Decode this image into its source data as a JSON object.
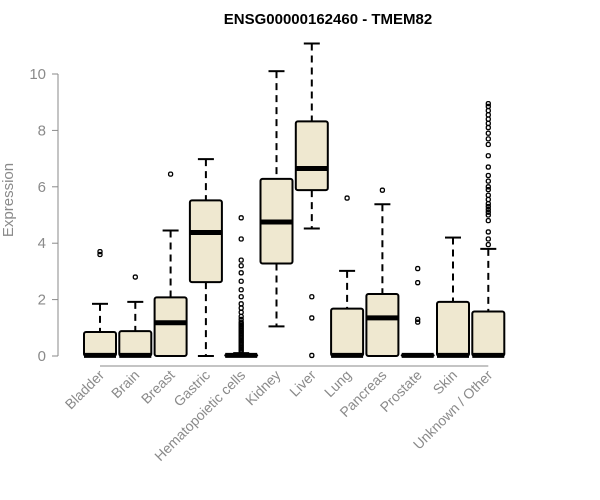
{
  "chart_data": {
    "type": "boxplot",
    "title": "ENSG00000162460 - TMEM82",
    "xlabel": "",
    "ylabel": "Expression",
    "ylim": [
      0,
      11
    ],
    "yticks": [
      0,
      2,
      4,
      6,
      8,
      10
    ],
    "box_fill": "#efe8d0",
    "categories": [
      "Bladder",
      "Brain",
      "Breast",
      "Gastric",
      "Hematopoietic cells",
      "Kidney",
      "Liver",
      "Lung",
      "Pancreas",
      "Prostate",
      "Skin",
      "Unknown / Other"
    ],
    "boxes": [
      {
        "category": "Bladder",
        "min": 0,
        "q1": 0,
        "median": 0.02,
        "q3": 0.85,
        "max": 1.85,
        "outliers": [
          3.6,
          3.7
        ]
      },
      {
        "category": "Brain",
        "min": 0,
        "q1": 0,
        "median": 0.02,
        "q3": 0.88,
        "max": 1.92,
        "outliers": [
          2.8
        ]
      },
      {
        "category": "Breast",
        "min": 0,
        "q1": 0,
        "median": 1.18,
        "q3": 2.08,
        "max": 4.45,
        "outliers": [
          6.45
        ]
      },
      {
        "category": "Gastric",
        "min": 0,
        "q1": 2.62,
        "median": 4.38,
        "q3": 5.52,
        "max": 6.98,
        "outliers": []
      },
      {
        "category": "Hematopoietic cells",
        "min": 0,
        "q1": 0,
        "median": 0.02,
        "q3": 0.04,
        "max": 0.1,
        "outliers": [
          0.15,
          0.2,
          0.25,
          0.3,
          0.35,
          0.4,
          0.45,
          0.5,
          0.55,
          0.6,
          0.65,
          0.7,
          0.75,
          0.8,
          0.85,
          0.9,
          0.95,
          1.0,
          1.05,
          1.1,
          1.15,
          1.2,
          1.3,
          1.4,
          1.55,
          1.7,
          1.85,
          2.1,
          2.35,
          2.65,
          2.95,
          3.2,
          3.4,
          4.15,
          4.9
        ]
      },
      {
        "category": "Kidney",
        "min": 1.05,
        "q1": 3.28,
        "median": 4.75,
        "q3": 6.28,
        "max": 10.1,
        "outliers": []
      },
      {
        "category": "Liver",
        "min": 4.52,
        "q1": 5.88,
        "median": 6.65,
        "q3": 8.32,
        "max": 11.08,
        "outliers": [
          0.02,
          1.35,
          2.1
        ]
      },
      {
        "category": "Lung",
        "min": 0,
        "q1": 0,
        "median": 0.02,
        "q3": 1.68,
        "max": 3.02,
        "outliers": [
          5.6
        ]
      },
      {
        "category": "Pancreas",
        "min": 0,
        "q1": 0,
        "median": 1.35,
        "q3": 2.2,
        "max": 5.38,
        "outliers": [
          5.88
        ]
      },
      {
        "category": "Prostate",
        "min": 0,
        "q1": 0,
        "median": 0.02,
        "q3": 0.04,
        "max": 0.06,
        "outliers": [
          1.2,
          1.3,
          2.6,
          3.1
        ]
      },
      {
        "category": "Skin",
        "min": 0,
        "q1": 0,
        "median": 0.02,
        "q3": 1.92,
        "max": 4.2,
        "outliers": []
      },
      {
        "category": "Unknown / Other",
        "min": 0,
        "q1": 0,
        "median": 0.02,
        "q3": 1.58,
        "max": 3.8,
        "outliers": [
          3.95,
          4.15,
          4.4,
          4.8,
          5.0,
          5.1,
          5.2,
          5.3,
          5.4,
          5.55,
          5.7,
          5.9,
          6.0,
          6.2,
          6.4,
          6.7,
          7.1,
          7.5,
          7.7,
          7.9,
          8.1,
          8.25,
          8.4,
          8.55,
          8.7,
          8.85,
          8.95
        ]
      }
    ]
  }
}
